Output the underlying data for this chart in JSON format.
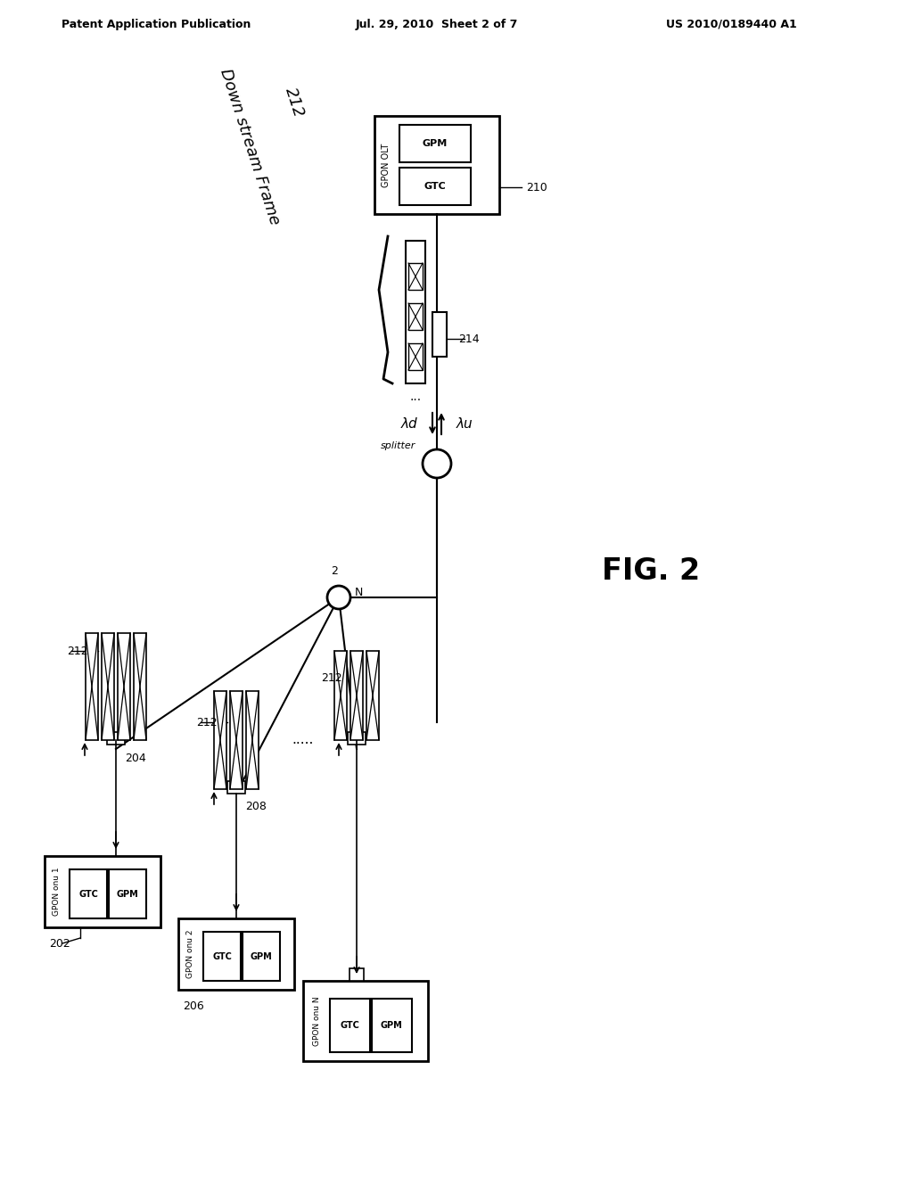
{
  "bg_color": "#ffffff",
  "header_left": "Patent Application Publication",
  "header_mid": "Jul. 29, 2010  Sheet 2 of 7",
  "header_right": "US 2010/0189440 A1",
  "fig_label": "FIG. 2",
  "splitter_label": "splitter",
  "lambda_d": "λd",
  "lambda_u": "λu",
  "node_label": "N",
  "ref_210": "210",
  "ref_202": "202",
  "ref_204": "204",
  "ref_206": "206",
  "ref_208": "208",
  "ref_212a": "212",
  "ref_212b": "212",
  "ref_212c": "212",
  "ref_212d": "212",
  "ref_214": "214",
  "olt_label": "GPON OLT",
  "onu1_label": "GPON onu 1",
  "onu2_label": "GPON onu 2",
  "onun_label": "GPON onu N",
  "gtc_label": "GTC",
  "gpm_label": "GPM",
  "dots_h": ".....",
  "dots_v": "...",
  "num_2": "2",
  "downstream_label": "Down stream Frame",
  "downstream_212": "212"
}
